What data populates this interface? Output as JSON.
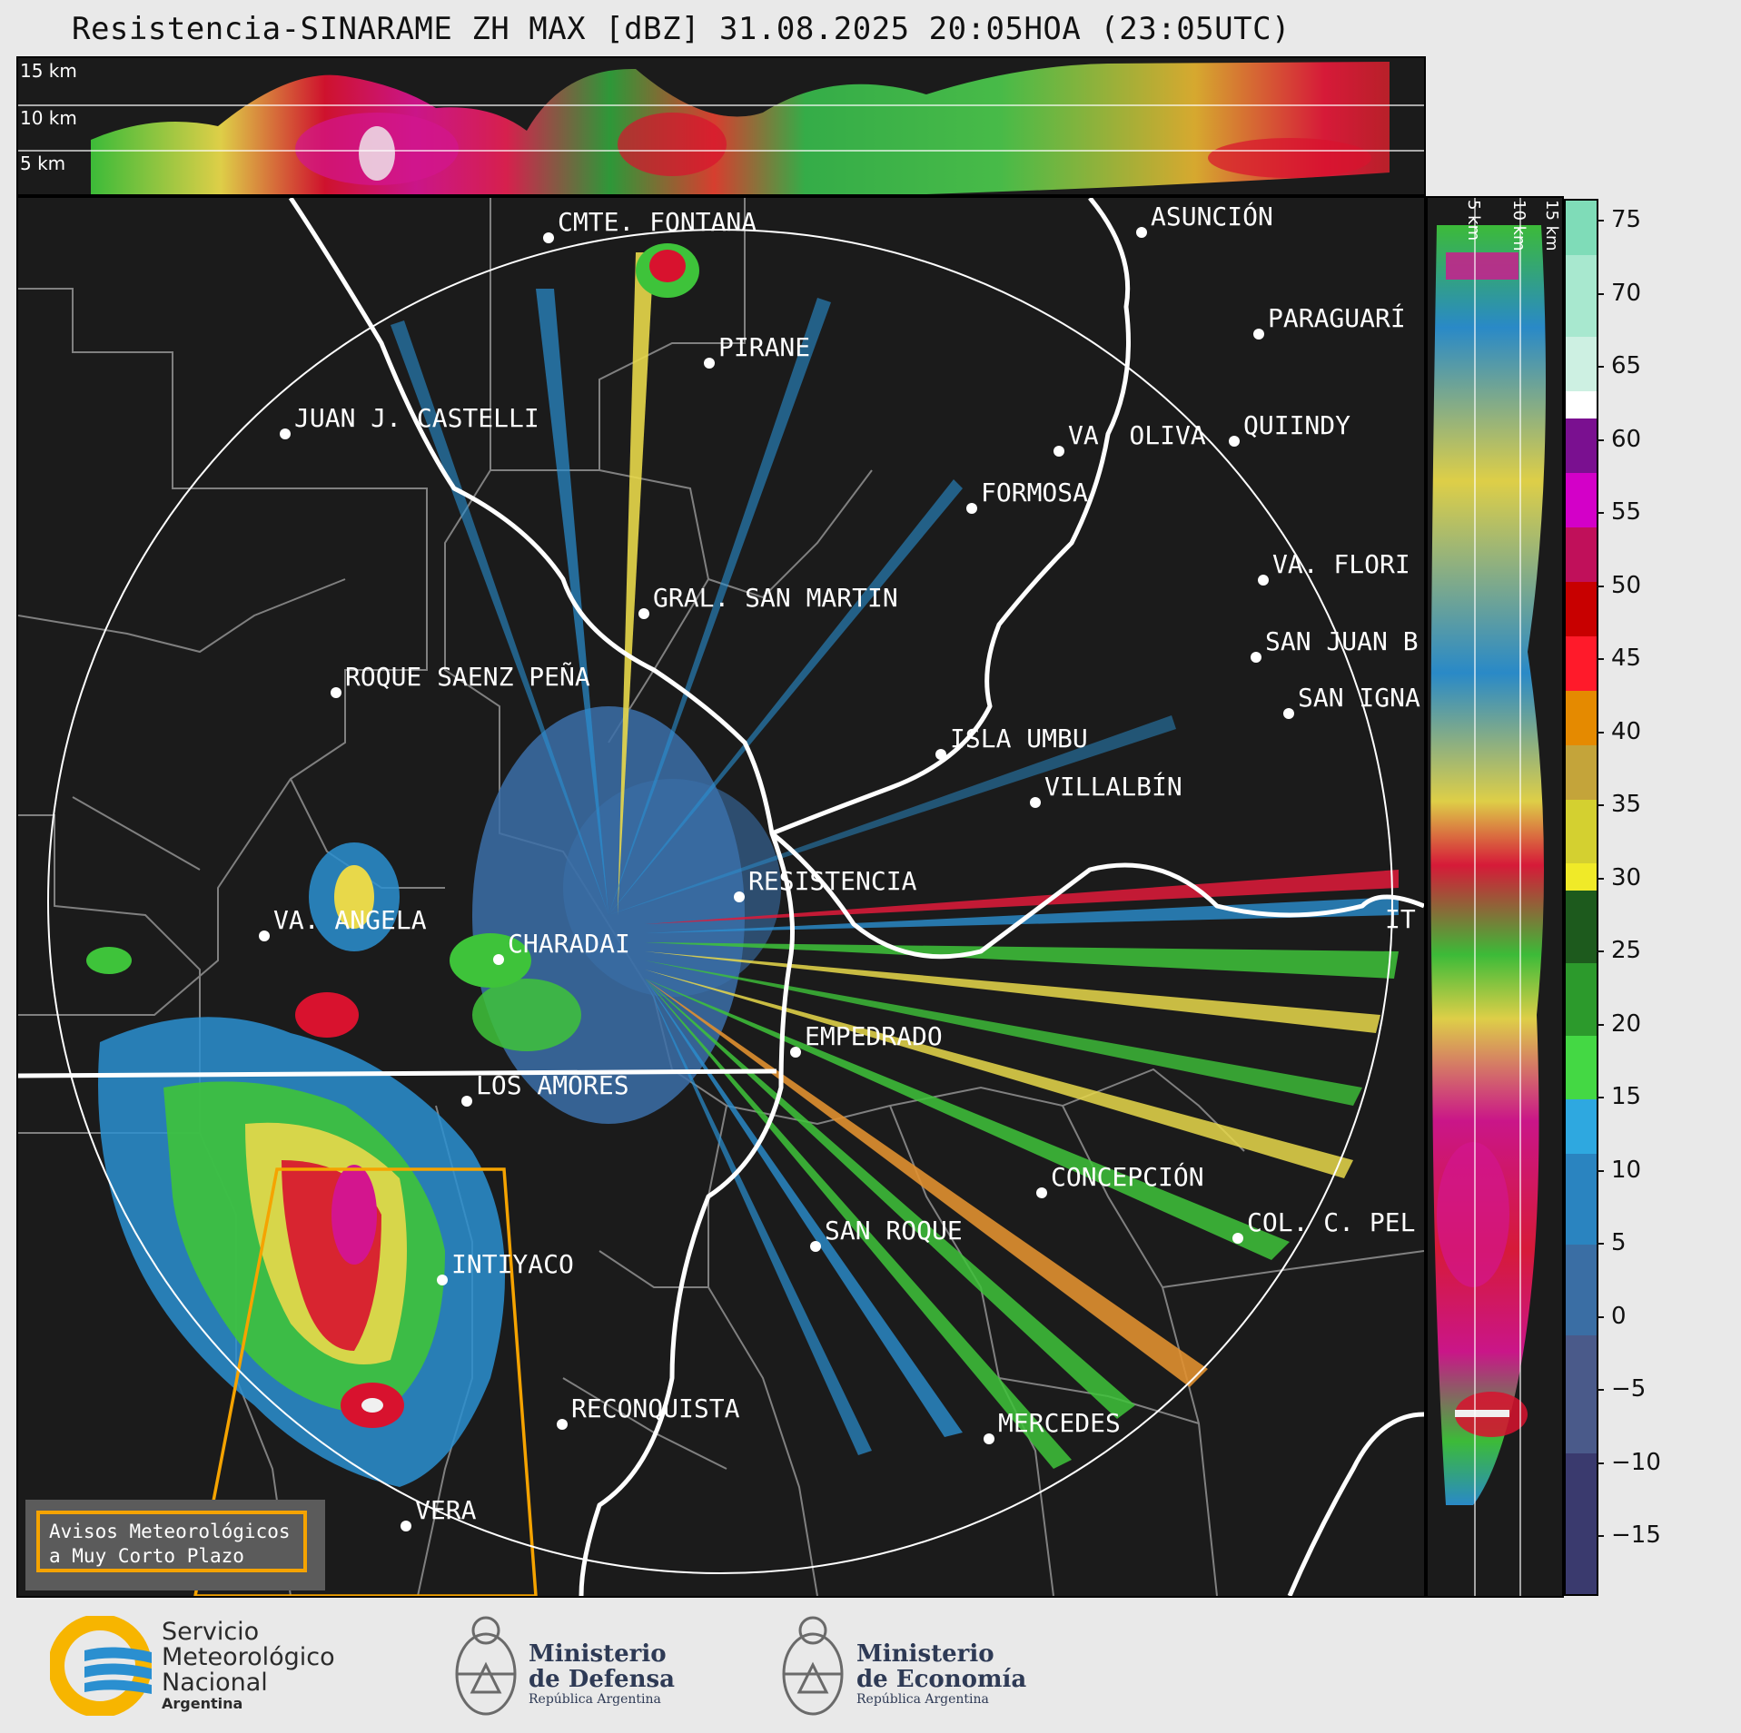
{
  "title": "Resistencia-SINARAME ZH MAX [dBZ] 31.08.2025 20:05HOA (23:05UTC)",
  "top_panel": {
    "height_labels": [
      "15 km",
      "10 km",
      "5 km"
    ]
  },
  "side_panel": {
    "height_labels": [
      "5 km",
      "10 km",
      "15 km"
    ]
  },
  "colorbar": {
    "ticks": [
      "75",
      "70",
      "65",
      "60",
      "55",
      "50",
      "45",
      "40",
      "35",
      "30",
      "25",
      "20",
      "15",
      "10",
      "5",
      "0",
      "−5",
      "−10",
      "−15"
    ],
    "range": [
      -20,
      77
    ]
  },
  "cities": {
    "fontana": "CMTE. FONTANA",
    "asuncion": "ASUNCIÓN",
    "paraguari": "PARAGUARÍ",
    "pirane": "PIRANE",
    "castelli": "JUAN J. CASTELLI",
    "oliva": "VA. OLIVA",
    "quiindy": "QUIINDY",
    "formosa": "FORMOSA",
    "florida": "VA. FLORI",
    "sanmartin": "GRAL. SAN MARTIN",
    "sanjuan": "SAN JUAN B",
    "saenzpena": "ROQUE SAENZ PEÑA",
    "sanignacio": "SAN IGNA",
    "islaumbu": "ISLA UMBU",
    "villalbin": "VILLALBÍN",
    "resistencia": "RESISTENCIA",
    "angela": "VA. ANGELA",
    "charadai": "CHARADAI",
    "ita": "IT",
    "empedrado": "EMPEDRADO",
    "losamores": "LOS AMORES",
    "concepcion": "CONCEPCIÓN",
    "sanroque": "SAN ROQUE",
    "colpel": "COL. C. PEL",
    "intiyaco": "INTIYACO",
    "reconquista": "RECONQUISTA",
    "mercedes": "MERCEDES",
    "vera": "VERA"
  },
  "warning_box": {
    "line1": "Avisos Meteorológicos",
    "line2": "a Muy Corto Plazo"
  },
  "footer": {
    "smn_line1": "Servicio",
    "smn_line2": "Meteorológico",
    "smn_line3": "Nacional",
    "smn_line4": "Argentina",
    "defensa_line1": "Ministerio",
    "defensa_line2": "de Defensa",
    "defensa_sub": "República Argentina",
    "economia_line1": "Ministerio",
    "economia_line2": "de Economía",
    "economia_sub": "República Argentina"
  },
  "colors": {
    "background": "#1b1b1b",
    "range_ring": "#ffffff",
    "rivers": "#ffffff",
    "borders": "#808080",
    "warning_polygon": "#f5a300",
    "smn_yellow": "#f7b500",
    "smn_blue": "#2a8fd0"
  }
}
